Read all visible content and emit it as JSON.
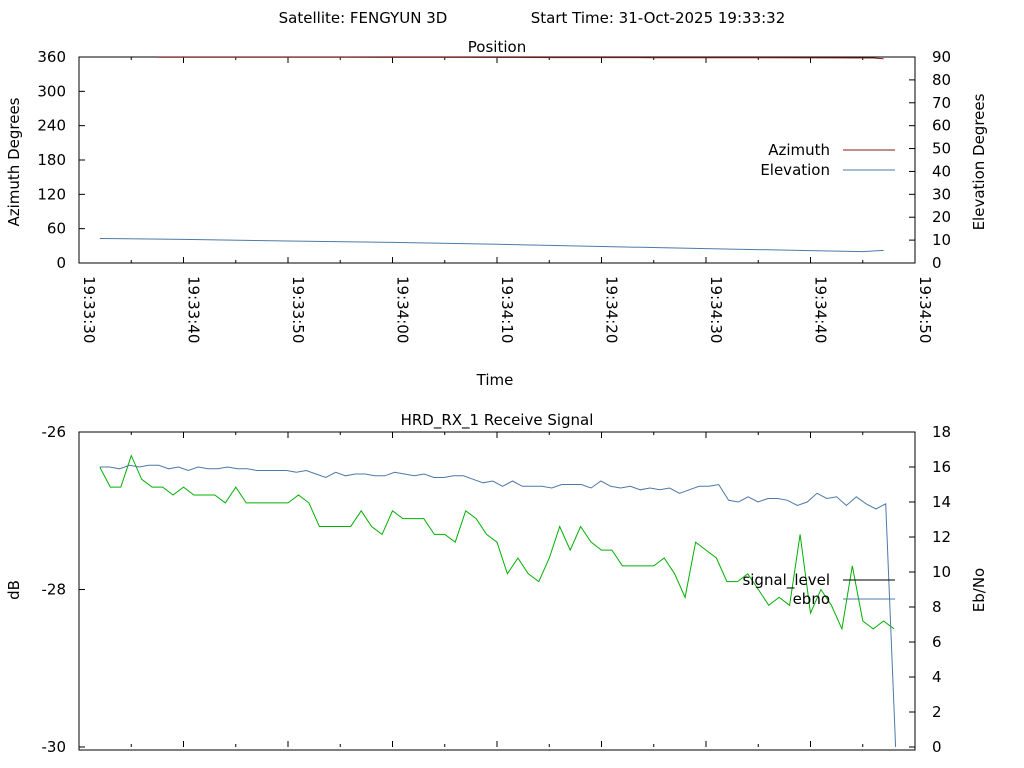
{
  "header": {
    "satellite_label": "Satellite: FENGYUN 3D",
    "start_label": "Start Time: 31-Oct-2025 19:33:32"
  },
  "chart_data": [
    {
      "type": "line",
      "title": "Position",
      "xlabel": "Time",
      "ylabel_left": "Azimuth Degrees",
      "ylabel_right": "Elevation Degrees",
      "x_ticks": [
        "19:33:30",
        "19:33:40",
        "19:33:50",
        "19:34:00",
        "19:34:10",
        "19:34:20",
        "19:34:30",
        "19:34:40",
        "19:34:50"
      ],
      "xlim_seconds": [
        0,
        80
      ],
      "y_left_ticks": [
        "0",
        "60",
        "120",
        "180",
        "240",
        "300",
        "360"
      ],
      "ylim_left": [
        0,
        360
      ],
      "y_right_ticks": [
        "0",
        "10",
        "20",
        "30",
        "40",
        "50",
        "60",
        "70",
        "80",
        "90"
      ],
      "ylim_right": [
        0,
        90
      ],
      "legend_position": "right",
      "grid": false,
      "series": [
        {
          "name": "Azimuth",
          "axis": "left",
          "color": "#8b1a1a",
          "points": [
            [
              7.5,
              359.6
            ],
            [
              15,
              359.5
            ],
            [
              25,
              359.4
            ],
            [
              35,
              359.3
            ],
            [
              42,
              359.2
            ],
            [
              45,
              359.0
            ],
            [
              55,
              358.8
            ],
            [
              65,
              358.6
            ],
            [
              72,
              358.4
            ],
            [
              76,
              358.3
            ],
            [
              77,
              357.0
            ]
          ]
        },
        {
          "name": "Elevation",
          "axis": "left_scaled",
          "color": "#4e79a7",
          "points": [
            [
              2,
              10.7
            ],
            [
              10,
              10.3
            ],
            [
              20,
              9.6
            ],
            [
              30,
              9.0
            ],
            [
              40,
              8.2
            ],
            [
              50,
              7.2
            ],
            [
              60,
              6.3
            ],
            [
              70,
              5.4
            ],
            [
              75,
              5.0
            ],
            [
              77,
              5.5
            ]
          ]
        }
      ]
    },
    {
      "type": "line",
      "title": "HRD_RX_1 Receive Signal",
      "ylabel_left": "dB",
      "ylabel_right": "Eb/No",
      "y_left_ticks": [
        "-26",
        "-28",
        "-30"
      ],
      "ylim_left": [
        -30,
        -26
      ],
      "y_right_ticks": [
        "0",
        "2",
        "4",
        "6",
        "8",
        "10",
        "12",
        "14",
        "16",
        "18"
      ],
      "ylim_right": [
        0,
        18
      ],
      "legend_position": "right",
      "grid": false,
      "series": [
        {
          "name": "signal_level",
          "axis": "left",
          "color": "#00b000",
          "values": [
            -26.45,
            -26.7,
            -26.7,
            -26.3,
            -26.6,
            -26.7,
            -26.7,
            -26.8,
            -26.7,
            -26.8,
            -26.8,
            -26.8,
            -26.9,
            -26.7,
            -26.9,
            -26.9,
            -26.9,
            -26.9,
            -26.9,
            -26.8,
            -26.9,
            -27.2,
            -27.2,
            -27.2,
            -27.2,
            -27.0,
            -27.2,
            -27.3,
            -27.0,
            -27.1,
            -27.1,
            -27.1,
            -27.3,
            -27.3,
            -27.4,
            -27.0,
            -27.1,
            -27.3,
            -27.4,
            -27.8,
            -27.6,
            -27.8,
            -27.9,
            -27.6,
            -27.2,
            -27.5,
            -27.2,
            -27.4,
            -27.5,
            -27.5,
            -27.7,
            -27.7,
            -27.7,
            -27.7,
            -27.6,
            -27.8,
            -28.1,
            -27.4,
            -27.5,
            -27.6,
            -27.9,
            -27.9,
            -27.8,
            -28.0,
            -28.2,
            -28.1,
            -28.2,
            -27.3,
            -28.3,
            -28.0,
            -28.2,
            -28.5,
            -27.7,
            -28.4,
            -28.5,
            -28.4,
            -28.5
          ],
          "x_start_seconds": 2,
          "x_step_seconds": 1
        },
        {
          "name": "ebno",
          "axis": "right",
          "color": "#4e79a7",
          "values": [
            16.0,
            16.0,
            15.9,
            16.1,
            16.0,
            16.1,
            16.1,
            15.9,
            16.0,
            15.8,
            16.0,
            15.9,
            15.9,
            16.0,
            15.9,
            15.9,
            15.8,
            15.8,
            15.8,
            15.8,
            15.7,
            15.8,
            15.6,
            15.4,
            15.7,
            15.5,
            15.6,
            15.6,
            15.5,
            15.5,
            15.7,
            15.6,
            15.5,
            15.6,
            15.4,
            15.4,
            15.5,
            15.5,
            15.3,
            15.1,
            15.2,
            14.9,
            15.2,
            14.9,
            14.9,
            14.9,
            14.8,
            15.0,
            15.0,
            15.0,
            14.8,
            15.2,
            14.9,
            14.8,
            14.9,
            14.7,
            14.8,
            14.7,
            14.8,
            14.5,
            14.7,
            14.9,
            14.9,
            15.0,
            14.1,
            14.0,
            14.3,
            14.0,
            14.2,
            14.2,
            14.1,
            13.8,
            14.0,
            14.5,
            14.2,
            14.3,
            13.8,
            14.3,
            13.9,
            13.6,
            13.9,
            0.0
          ],
          "x_start_seconds": 2,
          "x_step_seconds": 0.94
        }
      ]
    }
  ]
}
